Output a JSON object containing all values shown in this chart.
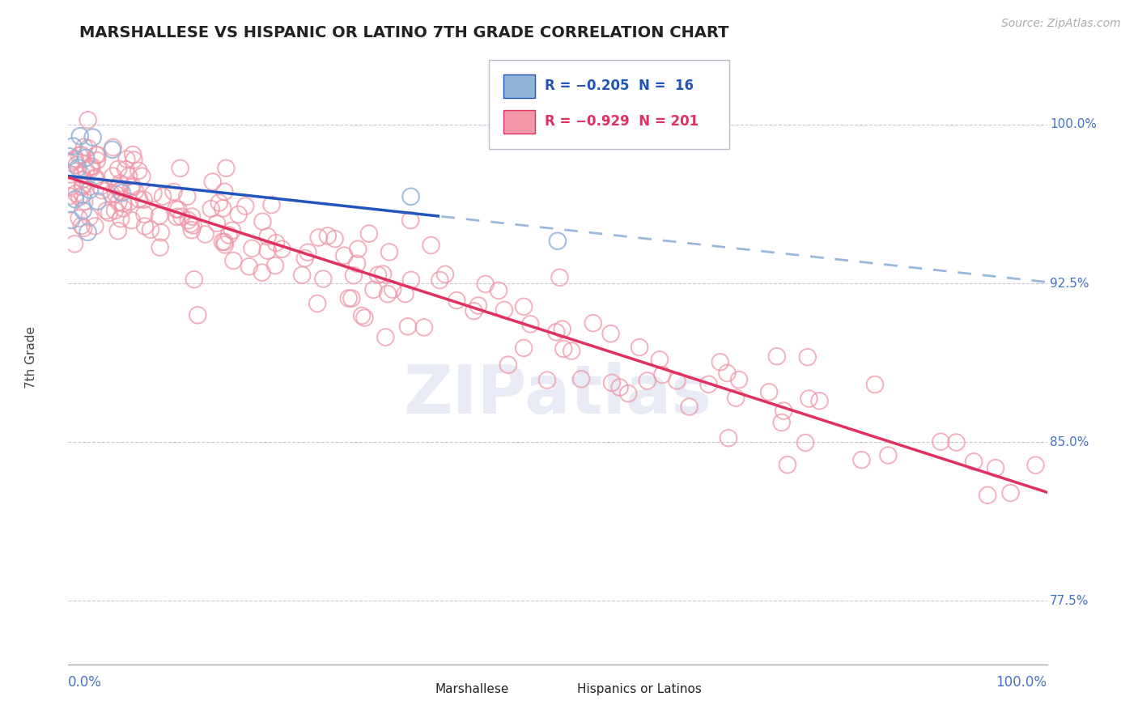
{
  "title": "MARSHALLESE VS HISPANIC OR LATINO 7TH GRADE CORRELATION CHART",
  "source_text": "Source: ZipAtlas.com",
  "ylabel": "7th Grade",
  "ylabel_right_ticks": [
    0.775,
    0.85,
    0.925,
    1.0
  ],
  "ylabel_right_labels": [
    "77.5%",
    "85.0%",
    "92.5%",
    "100.0%"
  ],
  "x_range": [
    0.0,
    1.0
  ],
  "y_range": [
    0.745,
    1.035
  ],
  "marshallese_R": -0.205,
  "marshallese_N": 16,
  "hispanic_R": -0.929,
  "hispanic_N": 201,
  "blue_scatter_color": "#92b4d8",
  "pink_scatter_color": "#f096a8",
  "blue_line_color": "#2255bb",
  "pink_line_color": "#e03060",
  "blue_dash_color": "#99b8dd",
  "background_color": "#ffffff",
  "watermark_color": "#e8eaf6",
  "grid_color": "#c8c8d8",
  "title_color": "#222222",
  "axis_label_color": "#4472c4",
  "right_tick_color": "#4472c4",
  "legend_text_blue": "R = −0.205  N =  16",
  "legend_text_pink": "R = −0.929  N = 201"
}
